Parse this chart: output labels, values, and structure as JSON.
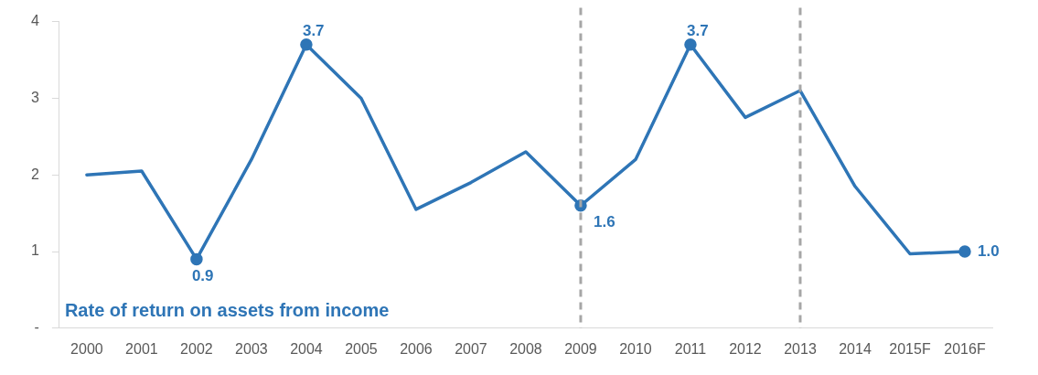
{
  "chart_data": {
    "type": "line",
    "categories": [
      "2000",
      "2001",
      "2002",
      "2003",
      "2004",
      "2005",
      "2006",
      "2007",
      "2008",
      "2009",
      "2010",
      "2011",
      "2012",
      "2013",
      "2014",
      "2015F",
      "2016F"
    ],
    "series": [
      {
        "name": "Rate of return on assets from income",
        "color": "#2e75b6",
        "values": [
          2.0,
          2.05,
          0.9,
          2.2,
          3.7,
          3.0,
          1.55,
          1.9,
          2.3,
          1.6,
          2.2,
          3.7,
          2.75,
          3.1,
          1.85,
          0.97,
          1.0
        ],
        "value_labels": [
          null,
          null,
          "0.9",
          null,
          "3.7",
          null,
          null,
          null,
          null,
          "1.6",
          null,
          "3.7",
          null,
          null,
          null,
          null,
          "1.0"
        ]
      }
    ],
    "ylim": [
      0,
      4
    ],
    "yticks": [
      {
        "value": 0,
        "label": "-"
      },
      1,
      2,
      3,
      4
    ],
    "ref_lines": [
      {
        "axis": "x",
        "value": "2009",
        "color": "#a6a6a6",
        "line_style": "dashed"
      },
      {
        "axis": "x",
        "value": "2013",
        "color": "#a6a6a6",
        "line_style": "dashed"
      }
    ],
    "legend": "bottom left",
    "line_style": "solid",
    "grid": false
  }
}
